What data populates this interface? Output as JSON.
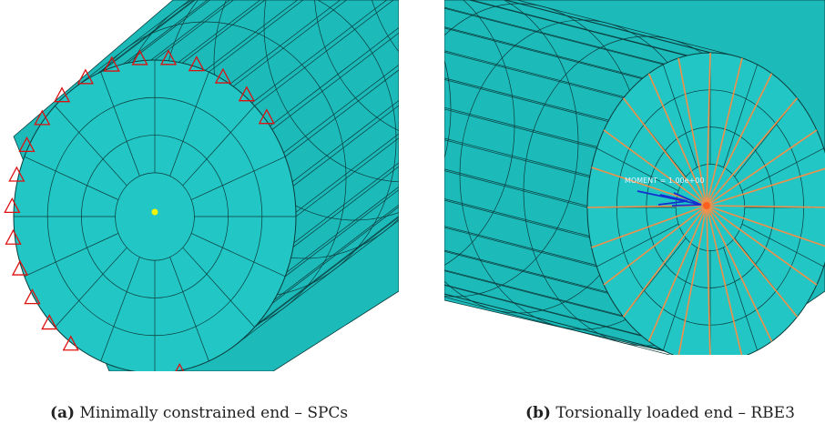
{
  "figure": {
    "panels": [
      {
        "label": "(a)",
        "caption": "Minimally constrained end – SPCs"
      },
      {
        "label": "(b)",
        "caption": "Torsionally loaded end – RBE3",
        "annotation": "MOMENT = 1.00e+00"
      }
    ]
  }
}
